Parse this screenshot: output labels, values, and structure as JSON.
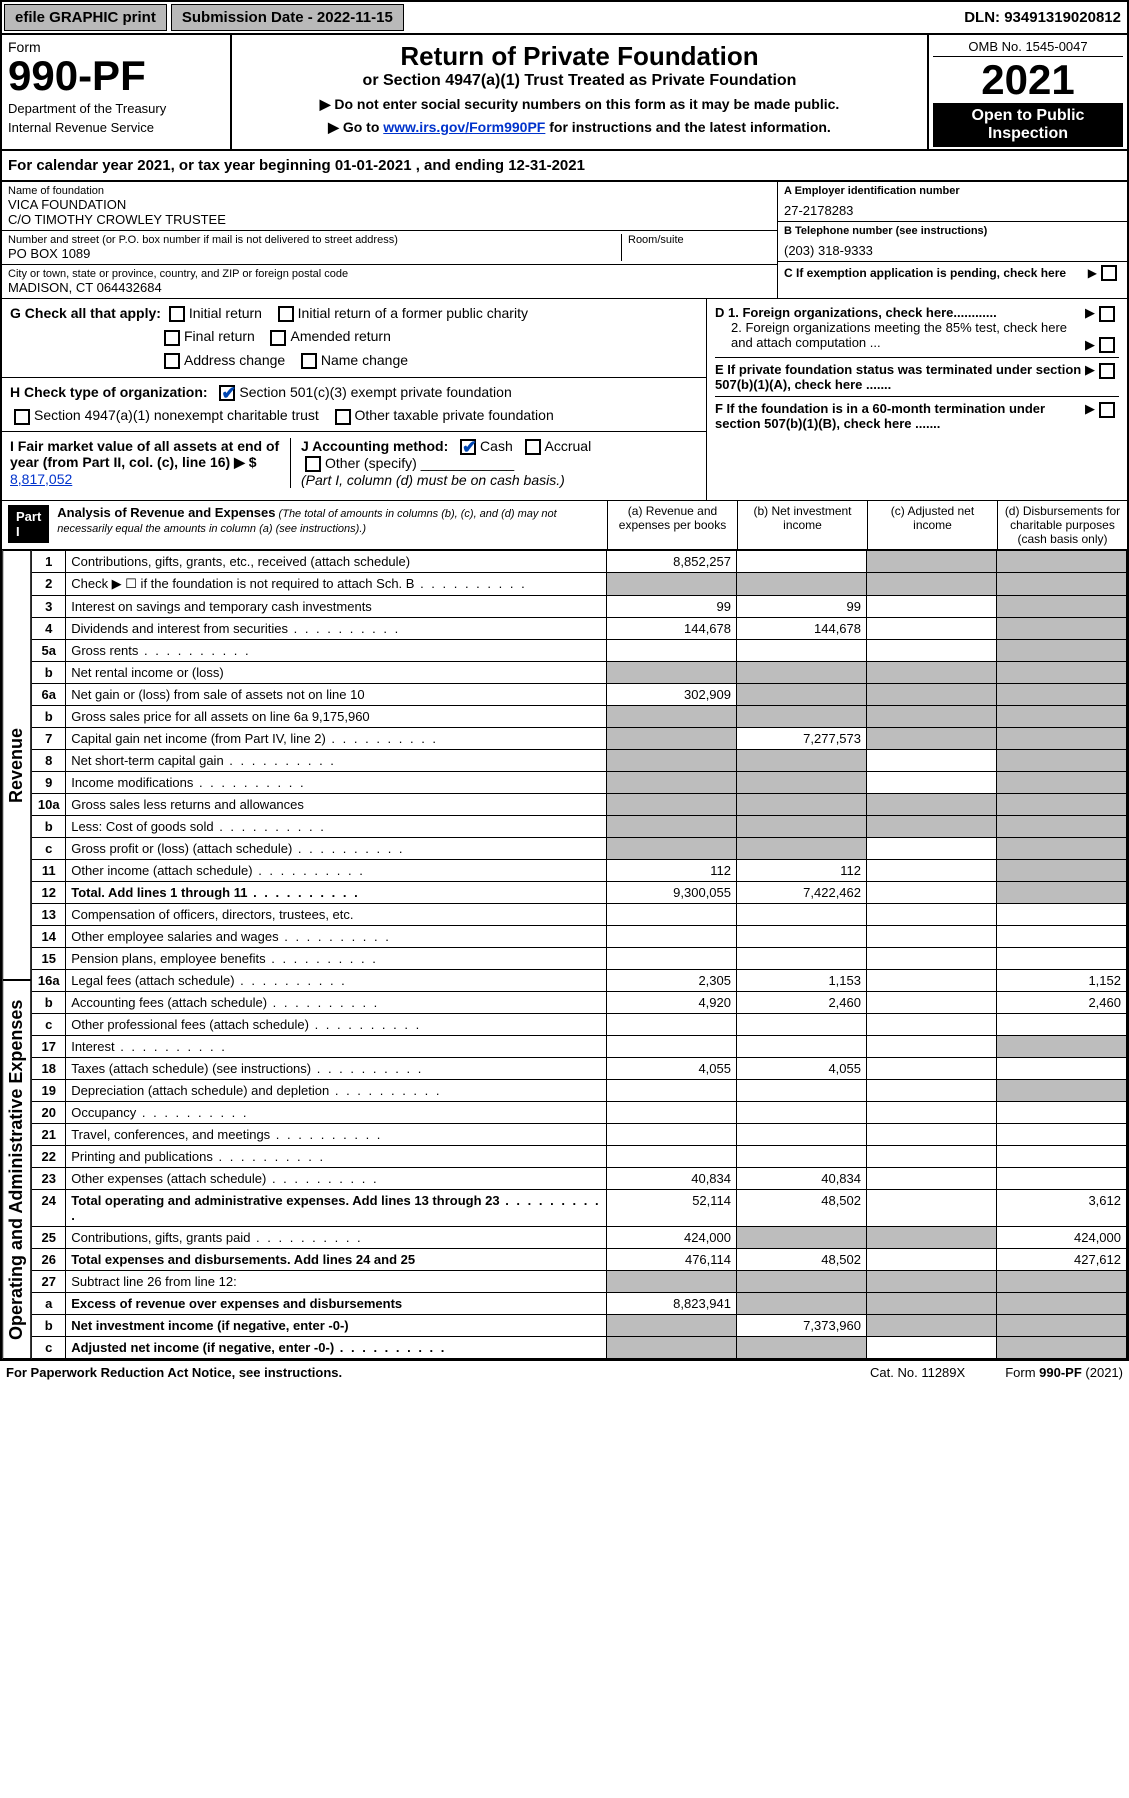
{
  "topbar": {
    "efile": "efile GRAPHIC print",
    "submission": "Submission Date - 2022-11-15",
    "dln": "DLN: 93491319020812"
  },
  "header": {
    "form_word": "Form",
    "form_num": "990-PF",
    "dept": "Department of the Treasury",
    "irs": "Internal Revenue Service",
    "title": "Return of Private Foundation",
    "subtitle": "or Section 4947(a)(1) Trust Treated as Private Foundation",
    "note1": "▶ Do not enter social security numbers on this form as it may be made public.",
    "note2_pre": "▶ Go to ",
    "note2_link": "www.irs.gov/Form990PF",
    "note2_post": " for instructions and the latest information.",
    "omb": "OMB No. 1545-0047",
    "year": "2021",
    "open": "Open to Public Inspection"
  },
  "calyear": {
    "text_pre": "For calendar year 2021, or tax year beginning ",
    "begin": "01-01-2021",
    "mid": " , and ending ",
    "end": "12-31-2021"
  },
  "entity": {
    "name_lbl": "Name of foundation",
    "name1": "VICA FOUNDATION",
    "name2": "C/O TIMOTHY CROWLEY TRUSTEE",
    "addr_lbl": "Number and street (or P.O. box number if mail is not delivered to street address)",
    "room_lbl": "Room/suite",
    "addr": "PO BOX 1089",
    "city_lbl": "City or town, state or province, country, and ZIP or foreign postal code",
    "city": "MADISON, CT  064432684",
    "a_lbl": "A Employer identification number",
    "a_val": "27-2178283",
    "b_lbl": "B Telephone number (see instructions)",
    "b_val": "(203) 318-9333",
    "c_lbl": "C If exemption application is pending, check here",
    "d1": "D 1. Foreign organizations, check here............",
    "d2": "2. Foreign organizations meeting the 85% test, check here and attach computation ...",
    "e": "E  If private foundation status was terminated under section 507(b)(1)(A), check here .......",
    "f": "F  If the foundation is in a 60-month termination under section 507(b)(1)(B), check here .......",
    "g_lbl": "G Check all that apply:",
    "g_opts": [
      "Initial return",
      "Initial return of a former public charity",
      "Final return",
      "Amended return",
      "Address change",
      "Name change"
    ],
    "h_lbl": "H Check type of organization:",
    "h1": "Section 501(c)(3) exempt private foundation",
    "h2": "Section 4947(a)(1) nonexempt charitable trust",
    "h3": "Other taxable private foundation",
    "i_lbl": "I Fair market value of all assets at end of year (from Part II, col. (c), line 16) ▶ $",
    "i_val": "8,817,052",
    "j_lbl": "J Accounting method:",
    "j_cash": "Cash",
    "j_accr": "Accrual",
    "j_other": "Other (specify)",
    "j_note": "(Part I, column (d) must be on cash basis.)"
  },
  "part1": {
    "hdr": "Part I",
    "title": "Analysis of Revenue and Expenses",
    "title_note": " (The total of amounts in columns (b), (c), and (d) may not necessarily equal the amounts in column (a) (see instructions).)",
    "cols": {
      "a": "(a) Revenue and expenses per books",
      "b": "(b) Net investment income",
      "c": "(c) Adjusted net income",
      "d": "(d) Disbursements for charitable purposes (cash basis only)"
    }
  },
  "vlabels": {
    "rev": "Revenue",
    "exp": "Operating and Administrative Expenses"
  },
  "lines": [
    {
      "n": "1",
      "d": "Contributions, gifts, grants, etc., received (attach schedule)",
      "a": "8,852,257",
      "b": "",
      "c": "shade",
      "dcol": "shade"
    },
    {
      "n": "2",
      "d": "Check ▶ ☐ if the foundation is not required to attach Sch. B",
      "a": "shade",
      "b": "shade",
      "c": "shade",
      "dcol": "shade",
      "dots": true
    },
    {
      "n": "3",
      "d": "Interest on savings and temporary cash investments",
      "a": "99",
      "b": "99",
      "c": "",
      "dcol": "shade"
    },
    {
      "n": "4",
      "d": "Dividends and interest from securities",
      "a": "144,678",
      "b": "144,678",
      "c": "",
      "dcol": "shade",
      "dots": true
    },
    {
      "n": "5a",
      "d": "Gross rents",
      "a": "",
      "b": "",
      "c": "",
      "dcol": "shade",
      "dots": true
    },
    {
      "n": "b",
      "d": "Net rental income or (loss)",
      "a": "shade",
      "b": "shade",
      "c": "shade",
      "dcol": "shade"
    },
    {
      "n": "6a",
      "d": "Net gain or (loss) from sale of assets not on line 10",
      "a": "302,909",
      "b": "shade",
      "c": "shade",
      "dcol": "shade"
    },
    {
      "n": "b",
      "d": "Gross sales price for all assets on line 6a        9,175,960",
      "a": "shade",
      "b": "shade",
      "c": "shade",
      "dcol": "shade"
    },
    {
      "n": "7",
      "d": "Capital gain net income (from Part IV, line 2)",
      "a": "shade",
      "b": "7,277,573",
      "c": "shade",
      "dcol": "shade",
      "dots": true
    },
    {
      "n": "8",
      "d": "Net short-term capital gain",
      "a": "shade",
      "b": "shade",
      "c": "",
      "dcol": "shade",
      "dots": true
    },
    {
      "n": "9",
      "d": "Income modifications",
      "a": "shade",
      "b": "shade",
      "c": "",
      "dcol": "shade",
      "dots": true
    },
    {
      "n": "10a",
      "d": "Gross sales less returns and allowances",
      "a": "shade",
      "b": "shade",
      "c": "shade",
      "dcol": "shade"
    },
    {
      "n": "b",
      "d": "Less: Cost of goods sold",
      "a": "shade",
      "b": "shade",
      "c": "shade",
      "dcol": "shade",
      "dots": true
    },
    {
      "n": "c",
      "d": "Gross profit or (loss) (attach schedule)",
      "a": "shade",
      "b": "shade",
      "c": "",
      "dcol": "shade",
      "dots": true
    },
    {
      "n": "11",
      "d": "Other income (attach schedule)",
      "a": "112",
      "b": "112",
      "c": "",
      "dcol": "shade",
      "dots": true
    },
    {
      "n": "12",
      "d": "Total. Add lines 1 through 11",
      "a": "9,300,055",
      "b": "7,422,462",
      "c": "",
      "dcol": "shade",
      "bold": true,
      "dots": true
    },
    {
      "n": "13",
      "d": "Compensation of officers, directors, trustees, etc.",
      "a": "",
      "b": "",
      "c": "",
      "dcol": ""
    },
    {
      "n": "14",
      "d": "Other employee salaries and wages",
      "a": "",
      "b": "",
      "c": "",
      "dcol": "",
      "dots": true
    },
    {
      "n": "15",
      "d": "Pension plans, employee benefits",
      "a": "",
      "b": "",
      "c": "",
      "dcol": "",
      "dots": true
    },
    {
      "n": "16a",
      "d": "Legal fees (attach schedule)",
      "a": "2,305",
      "b": "1,153",
      "c": "",
      "dcol": "1,152",
      "dots": true
    },
    {
      "n": "b",
      "d": "Accounting fees (attach schedule)",
      "a": "4,920",
      "b": "2,460",
      "c": "",
      "dcol": "2,460",
      "dots": true
    },
    {
      "n": "c",
      "d": "Other professional fees (attach schedule)",
      "a": "",
      "b": "",
      "c": "",
      "dcol": "",
      "dots": true
    },
    {
      "n": "17",
      "d": "Interest",
      "a": "",
      "b": "",
      "c": "",
      "dcol": "shade",
      "dots": true
    },
    {
      "n": "18",
      "d": "Taxes (attach schedule) (see instructions)",
      "a": "4,055",
      "b": "4,055",
      "c": "",
      "dcol": "",
      "dots": true
    },
    {
      "n": "19",
      "d": "Depreciation (attach schedule) and depletion",
      "a": "",
      "b": "",
      "c": "",
      "dcol": "shade",
      "dots": true
    },
    {
      "n": "20",
      "d": "Occupancy",
      "a": "",
      "b": "",
      "c": "",
      "dcol": "",
      "dots": true
    },
    {
      "n": "21",
      "d": "Travel, conferences, and meetings",
      "a": "",
      "b": "",
      "c": "",
      "dcol": "",
      "dots": true
    },
    {
      "n": "22",
      "d": "Printing and publications",
      "a": "",
      "b": "",
      "c": "",
      "dcol": "",
      "dots": true
    },
    {
      "n": "23",
      "d": "Other expenses (attach schedule)",
      "a": "40,834",
      "b": "40,834",
      "c": "",
      "dcol": "",
      "dots": true
    },
    {
      "n": "24",
      "d": "Total operating and administrative expenses. Add lines 13 through 23",
      "a": "52,114",
      "b": "48,502",
      "c": "",
      "dcol": "3,612",
      "bold": true,
      "dots": true
    },
    {
      "n": "25",
      "d": "Contributions, gifts, grants paid",
      "a": "424,000",
      "b": "shade",
      "c": "shade",
      "dcol": "424,000",
      "dots": true
    },
    {
      "n": "26",
      "d": "Total expenses and disbursements. Add lines 24 and 25",
      "a": "476,114",
      "b": "48,502",
      "c": "",
      "dcol": "427,612",
      "bold": true
    },
    {
      "n": "27",
      "d": "Subtract line 26 from line 12:",
      "a": "shade",
      "b": "shade",
      "c": "shade",
      "dcol": "shade"
    },
    {
      "n": "a",
      "d": "Excess of revenue over expenses and disbursements",
      "a": "8,823,941",
      "b": "shade",
      "c": "shade",
      "dcol": "shade",
      "bold": true
    },
    {
      "n": "b",
      "d": "Net investment income (if negative, enter -0-)",
      "a": "shade",
      "b": "7,373,960",
      "c": "shade",
      "dcol": "shade",
      "bold": true
    },
    {
      "n": "c",
      "d": "Adjusted net income (if negative, enter -0-)",
      "a": "shade",
      "b": "shade",
      "c": "",
      "dcol": "shade",
      "bold": true,
      "dots": true
    }
  ],
  "footer": {
    "pra": "For Paperwork Reduction Act Notice, see instructions.",
    "cat": "Cat. No. 11289X",
    "form": "Form 990-PF (2021)"
  },
  "colors": {
    "shade": "#bdbdbd",
    "link": "#0033cc",
    "check": "#0047b3"
  }
}
